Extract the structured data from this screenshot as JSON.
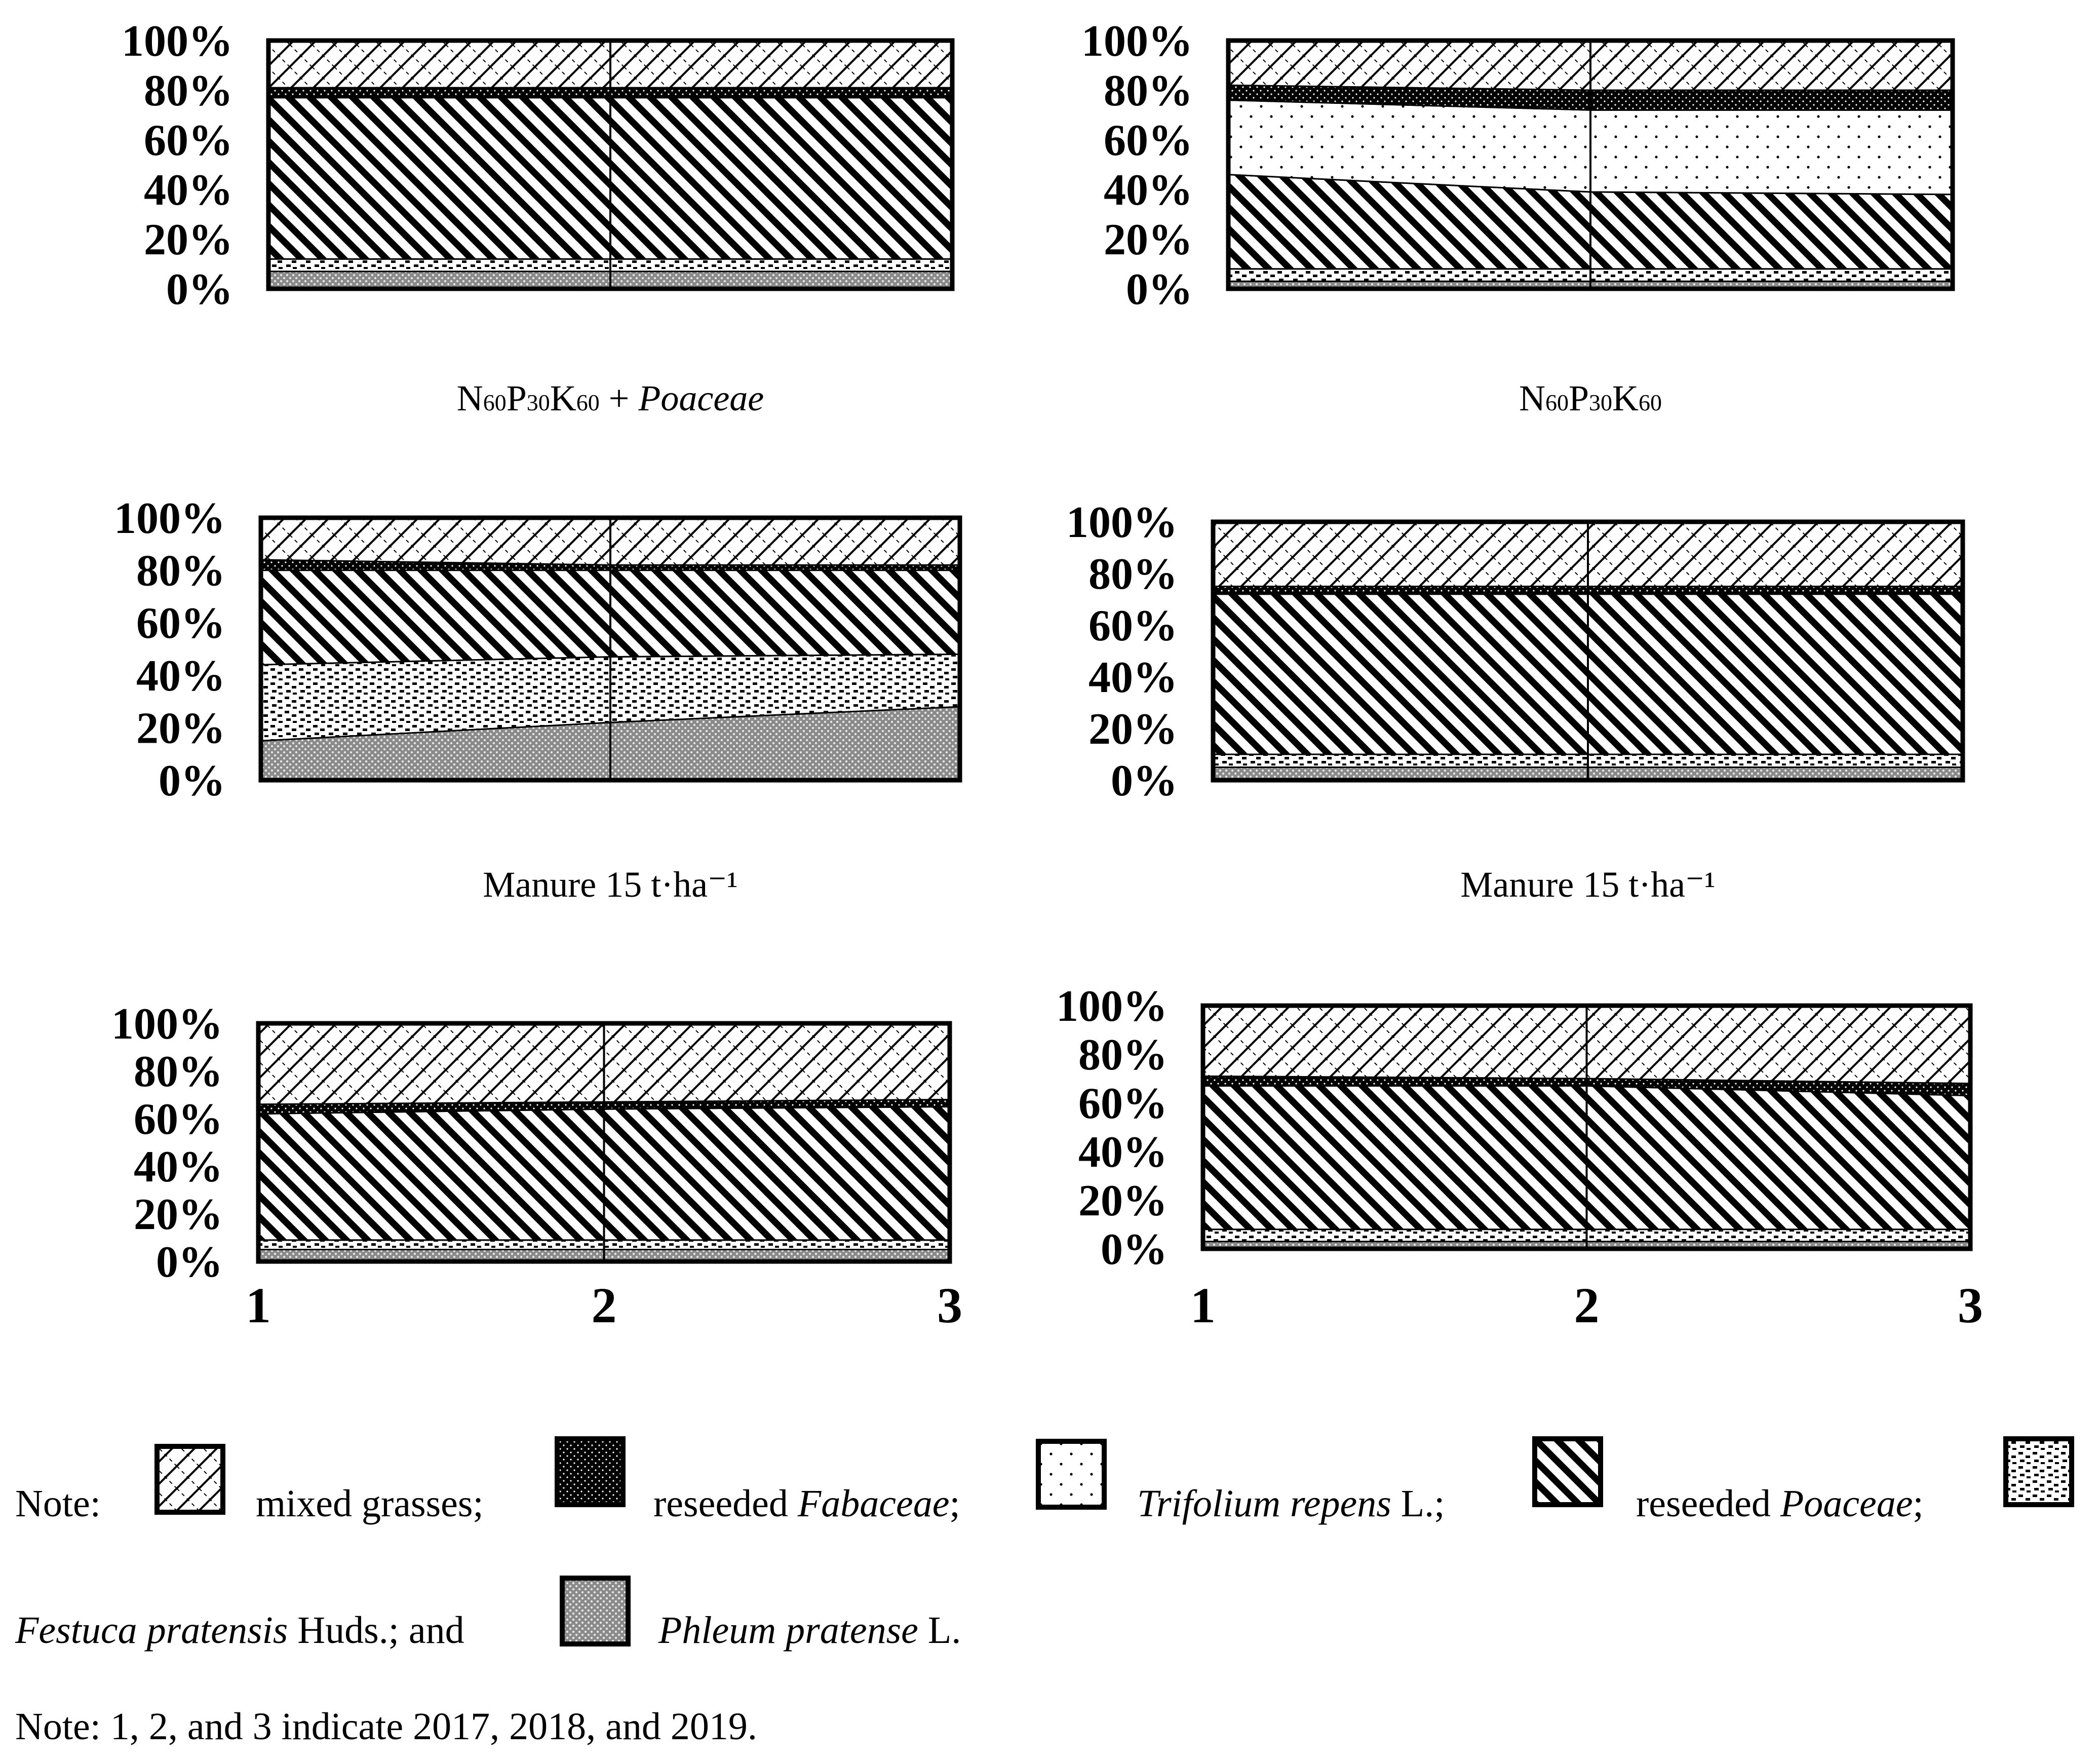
{
  "chart_data": [
    {
      "type": "area",
      "subtitle": "N60P30K60 + Poaceae",
      "x": [
        "1",
        "2",
        "3"
      ],
      "ylim": [
        0,
        100
      ],
      "yticks": [
        "0%",
        "20%",
        "40%",
        "60%",
        "80%",
        "100%"
      ],
      "show_x_labels": false,
      "series": [
        {
          "name": "Phleum pratense L.",
          "pattern": "phleum",
          "values": [
            7,
            7,
            7
          ]
        },
        {
          "name": "Festuca pratensis Huds.",
          "pattern": "festuca",
          "values": [
            5,
            5,
            5
          ]
        },
        {
          "name": "reseeded Poaceae",
          "pattern": "poaceae",
          "values": [
            65,
            65,
            65
          ]
        },
        {
          "name": "reseeded Fabaceae",
          "pattern": "fabaceae",
          "values": [
            4,
            4,
            4
          ]
        },
        {
          "name": "mixed grasses",
          "pattern": "mixed",
          "values": [
            19,
            19,
            19
          ]
        }
      ]
    },
    {
      "type": "area",
      "subtitle": "N60P30K60",
      "x": [
        "1",
        "2",
        "3"
      ],
      "ylim": [
        0,
        100
      ],
      "yticks": [
        "0%",
        "20%",
        "40%",
        "60%",
        "80%",
        "100%"
      ],
      "show_x_labels": false,
      "series": [
        {
          "name": "Phleum pratense L.",
          "pattern": "phleum",
          "values": [
            3,
            3,
            3
          ]
        },
        {
          "name": "Festuca pratensis Huds.",
          "pattern": "festuca",
          "values": [
            5,
            5,
            5
          ]
        },
        {
          "name": "reseeded Poaceae",
          "pattern": "poaceae",
          "values": [
            38,
            31,
            30
          ]
        },
        {
          "name": "Trifolium repens L.",
          "pattern": "trifolium",
          "values": [
            30,
            33,
            34
          ]
        },
        {
          "name": "reseeded Fabaceae",
          "pattern": "fabaceae",
          "values": [
            6,
            8,
            8
          ]
        },
        {
          "name": "mixed grasses",
          "pattern": "mixed",
          "values": [
            18,
            20,
            20
          ]
        }
      ]
    },
    {
      "type": "area",
      "subtitle": "Manure 15 t·ha⁻¹",
      "x": [
        "1",
        "2",
        "3"
      ],
      "ylim": [
        0,
        100
      ],
      "yticks": [
        "0%",
        "20%",
        "40%",
        "60%",
        "80%",
        "100%"
      ],
      "show_x_labels": false,
      "series": [
        {
          "name": "Phleum pratense L.",
          "pattern": "phleum",
          "values": [
            15,
            22,
            28
          ]
        },
        {
          "name": "Festuca pratensis Huds.",
          "pattern": "festuca",
          "values": [
            29,
            25,
            20
          ]
        },
        {
          "name": "reseeded Poaceae",
          "pattern": "poaceae",
          "values": [
            36,
            33,
            32
          ]
        },
        {
          "name": "reseeded Fabaceae",
          "pattern": "fabaceae",
          "values": [
            4,
            2,
            2
          ]
        },
        {
          "name": "mixed grasses",
          "pattern": "mixed",
          "values": [
            16,
            18,
            18
          ]
        }
      ]
    },
    {
      "type": "area",
      "subtitle": "Manure 15 t·ha⁻¹",
      "x": [
        "1",
        "2",
        "3"
      ],
      "ylim": [
        0,
        100
      ],
      "yticks": [
        "0%",
        "20%",
        "40%",
        "60%",
        "80%",
        "100%"
      ],
      "show_x_labels": false,
      "series": [
        {
          "name": "Phleum pratense L.",
          "pattern": "phleum",
          "values": [
            5,
            5,
            5
          ]
        },
        {
          "name": "Festuca pratensis Huds.",
          "pattern": "festuca",
          "values": [
            5,
            5,
            5
          ]
        },
        {
          "name": "reseeded Poaceae",
          "pattern": "poaceae",
          "values": [
            62,
            62,
            62
          ]
        },
        {
          "name": "reseeded Fabaceae",
          "pattern": "fabaceae",
          "values": [
            3,
            3,
            3
          ]
        },
        {
          "name": "mixed grasses",
          "pattern": "mixed",
          "values": [
            25,
            25,
            25
          ]
        }
      ]
    },
    {
      "type": "area",
      "subtitle": "",
      "x": [
        "1",
        "2",
        "3"
      ],
      "ylim": [
        0,
        100
      ],
      "yticks": [
        "0%",
        "20%",
        "40%",
        "60%",
        "80%",
        "100%"
      ],
      "show_x_labels": true,
      "series": [
        {
          "name": "Phleum pratense L.",
          "pattern": "phleum",
          "values": [
            5,
            5,
            5
          ]
        },
        {
          "name": "Festuca pratensis Huds.",
          "pattern": "festuca",
          "values": [
            4,
            4,
            4
          ]
        },
        {
          "name": "reseeded Poaceae",
          "pattern": "poaceae",
          "values": [
            53,
            55,
            56
          ]
        },
        {
          "name": "reseeded Fabaceae",
          "pattern": "fabaceae",
          "values": [
            4,
            3,
            3
          ]
        },
        {
          "name": "mixed grasses",
          "pattern": "mixed",
          "values": [
            34,
            33,
            32
          ]
        }
      ]
    },
    {
      "type": "area",
      "subtitle": "",
      "x": [
        "1",
        "2",
        "3"
      ],
      "ylim": [
        0,
        100
      ],
      "yticks": [
        "0%",
        "20%",
        "40%",
        "60%",
        "80%",
        "100%"
      ],
      "show_x_labels": true,
      "series": [
        {
          "name": "Phleum pratense L.",
          "pattern": "phleum",
          "values": [
            3,
            3,
            3
          ]
        },
        {
          "name": "Festuca pratensis Huds.",
          "pattern": "festuca",
          "values": [
            5,
            5,
            5
          ]
        },
        {
          "name": "reseeded Poaceae",
          "pattern": "poaceae",
          "values": [
            59,
            59,
            55
          ]
        },
        {
          "name": "reseeded Fabaceae",
          "pattern": "fabaceae",
          "values": [
            4,
            3,
            5
          ]
        },
        {
          "name": "mixed grasses",
          "pattern": "mixed",
          "values": [
            29,
            30,
            32
          ]
        }
      ]
    }
  ],
  "legend": {
    "note_label": "Note:",
    "items": [
      {
        "pattern": "mixed",
        "text": "mixed grasses;"
      },
      {
        "pattern": "fabaceae",
        "text_plain": "reseeded",
        "text_italic": "Fabaceae",
        "text_suffix": ";"
      },
      {
        "pattern": "trifolium",
        "text_italic": "Trifolium repens",
        "text_plain": "L.;"
      },
      {
        "pattern": "poaceae",
        "text_plain": "reseeded",
        "text_italic": "Poaceae",
        "text_suffix": ";"
      },
      {
        "pattern": "festuca",
        "text_italic": "Festuca pratensis",
        "text_plain": "Huds.; and"
      },
      {
        "pattern": "phleum",
        "text_italic": "Phleum pratense",
        "text_plain": "L."
      }
    ]
  },
  "note2": "Note: 1, 2, and 3 indicate 2017, 2018, and 2019."
}
